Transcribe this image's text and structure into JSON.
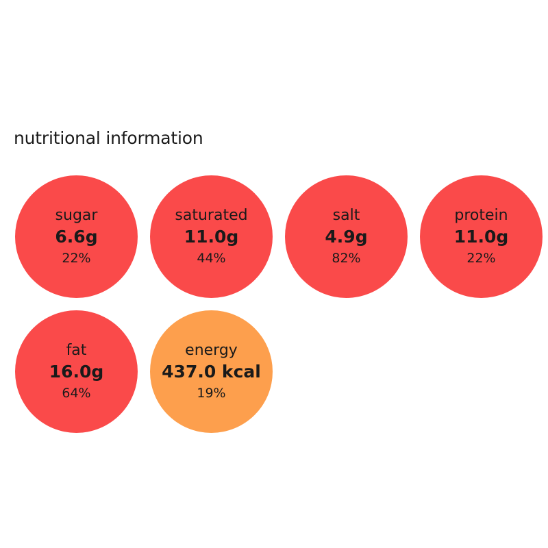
{
  "title": "nutritional information",
  "nutrients": [
    {
      "label": "sugar",
      "amount": "6.6g",
      "percent": "22%",
      "color": "#fa4a4a"
    },
    {
      "label": "saturated",
      "amount": "11.0g",
      "percent": "44%",
      "color": "#fa4a4a"
    },
    {
      "label": "salt",
      "amount": "4.9g",
      "percent": "82%",
      "color": "#fa4a4a"
    },
    {
      "label": "protein",
      "amount": "11.0g",
      "percent": "22%",
      "color": "#fa4a4a"
    },
    {
      "label": "fat",
      "amount": "16.0g",
      "percent": "64%",
      "color": "#fa4a4a"
    },
    {
      "label": "energy",
      "amount": "437.0 kcal",
      "percent": "19%",
      "color": "#fd9f4d"
    }
  ]
}
